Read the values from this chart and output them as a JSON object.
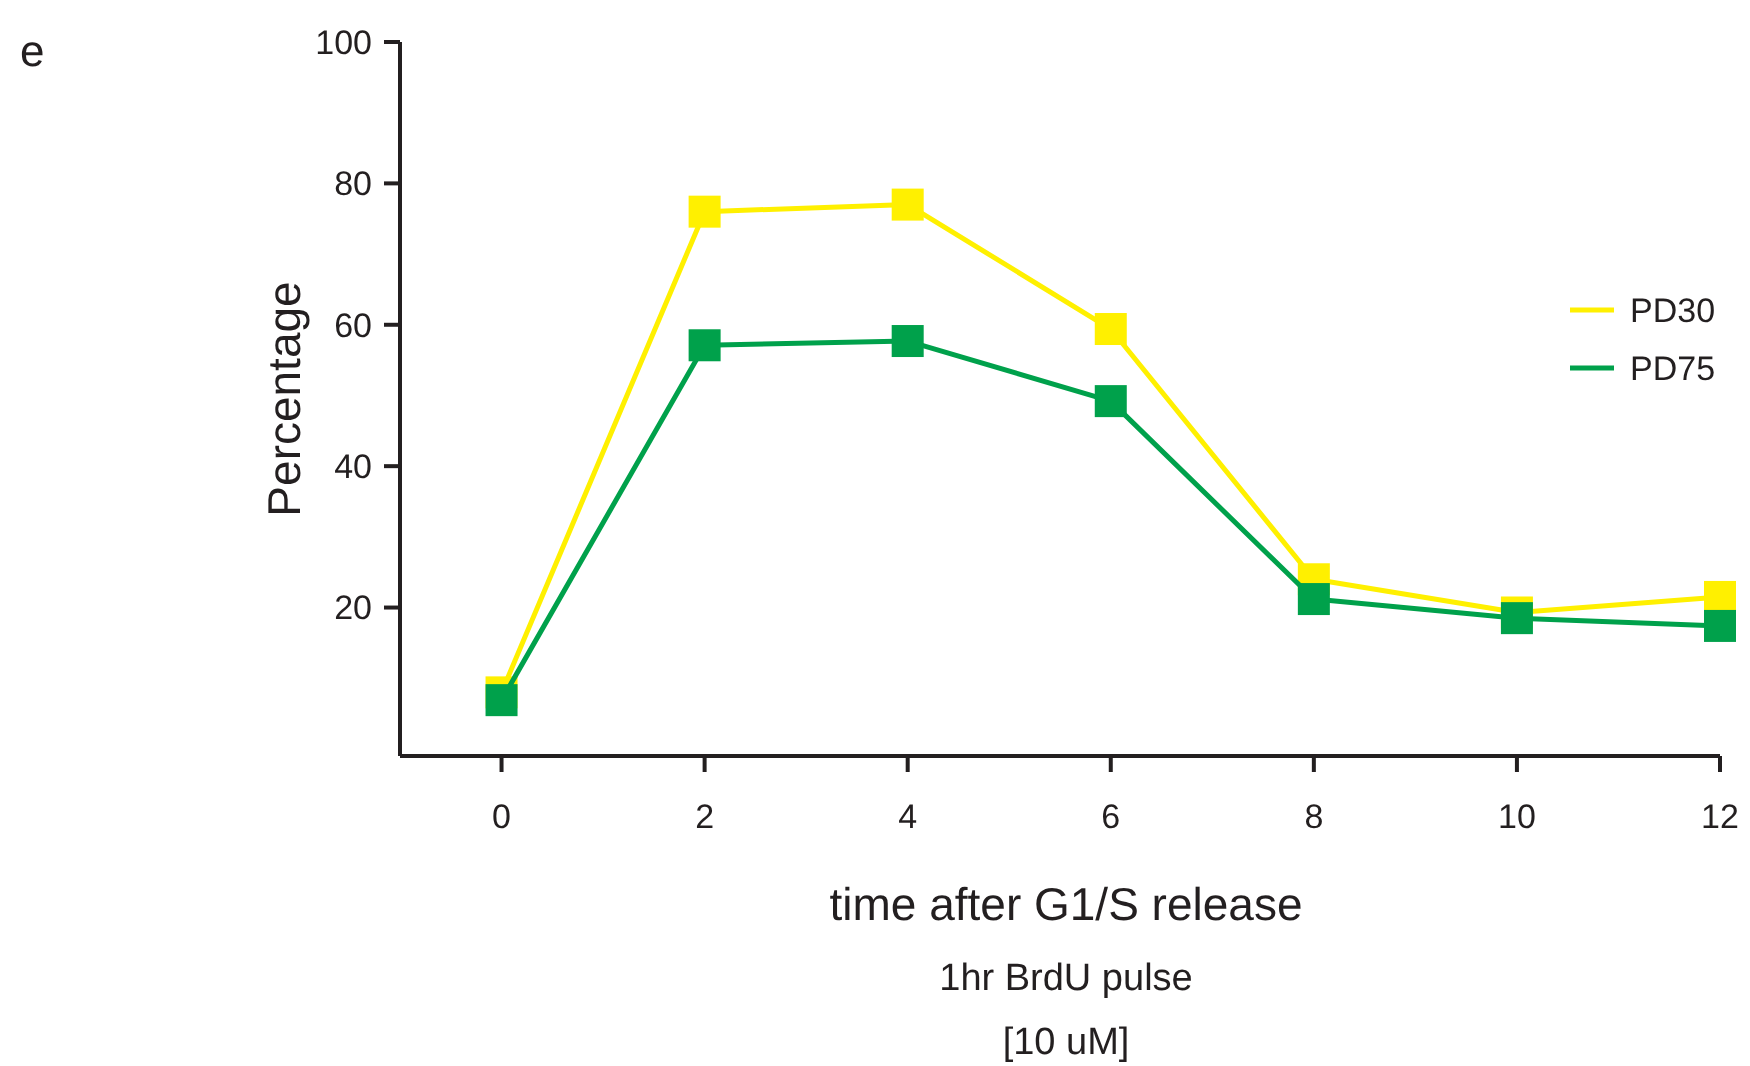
{
  "chart_data": {
    "type": "line",
    "xlabel": "time after G1/S release",
    "ylabel": "Percentage",
    "annotations": [
      "e",
      "1hr BrdU pulse",
      "[10 uM]"
    ],
    "x": [
      0,
      2,
      4,
      6,
      8,
      10,
      12
    ],
    "series": [
      {
        "name": "PD30",
        "color": "#fff000",
        "values": [
          8,
          76,
          77,
          59.4,
          24,
          19.3,
          21.5
        ]
      },
      {
        "name": "PD75",
        "color": "#00a14b",
        "values": [
          6.9,
          57.1,
          57.7,
          49.2,
          21.2,
          18.5,
          17.4
        ]
      }
    ],
    "xlim": [
      -1,
      12
    ],
    "xticks": [
      0,
      2,
      4,
      6,
      8,
      10,
      12
    ],
    "ylim": [
      -1,
      100
    ],
    "yticks": [
      20,
      40,
      60,
      80,
      100
    ],
    "grid": false,
    "legend": "right",
    "marker": "square",
    "line_style": "solid"
  }
}
